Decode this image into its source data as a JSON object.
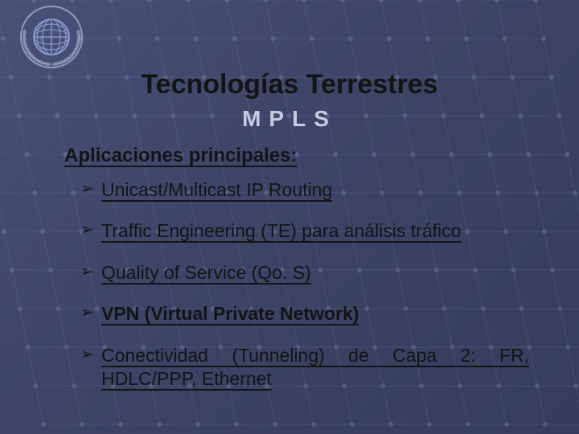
{
  "slide": {
    "title": "Tecnologías Terrestres",
    "subtitle": "MPLS",
    "section_heading": "Aplicaciones principales:",
    "bullet_marker": "➢",
    "bullets": [
      {
        "text": "Unicast/Multicast IP Routing",
        "bold": false
      },
      {
        "text": "Traffic Engineering (TE) para análisis tráfico",
        "bold": false
      },
      {
        "text": "Quality of Service (Qo. S)",
        "bold": false
      },
      {
        "text": "VPN (Virtual Private Network)",
        "bold": true
      },
      {
        "text": " Conectividad (Tunneling) de Capa 2: FR, HDLC/PPP, Ethernet",
        "bold": false
      }
    ]
  },
  "style": {
    "bg_gradient_from": "#4a5178",
    "bg_gradient_to": "#353c5c",
    "grid_line": "#6a7299",
    "grid_node": "#9aa3c8",
    "title_color": "#141414",
    "subtitle_color": "#c7cbe2",
    "text_color": "#141414",
    "title_fontsize": 34,
    "subtitle_fontsize": 28,
    "subtitle_letterspacing": 10,
    "heading_fontsize": 24,
    "bullet_fontsize": 23,
    "grid_cols": 15,
    "grid_rows": 11,
    "grid_cell": 48,
    "grid_node_radius": 3
  },
  "logo": {
    "name": "icao-logo",
    "globe_color": "#8fa1d6",
    "ring_color": "#b1bde4"
  }
}
